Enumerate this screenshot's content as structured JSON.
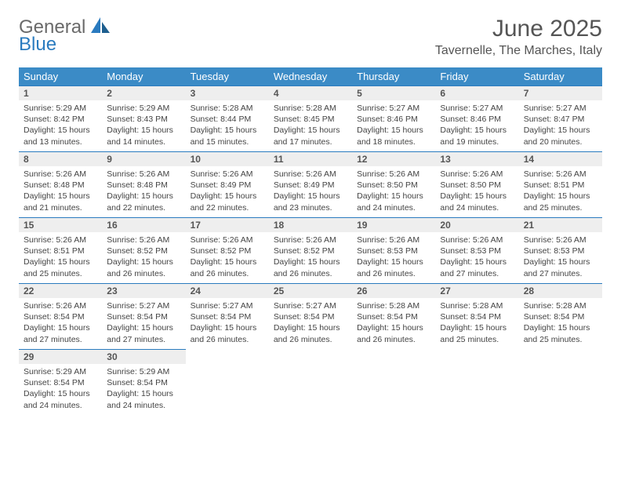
{
  "logo": {
    "general": "General",
    "blue": "Blue"
  },
  "title": "June 2025",
  "location": "Tavernelle, The Marches, Italy",
  "colors": {
    "header_bg": "#3b8bc6",
    "header_text": "#ffffff",
    "daynum_bg": "#eeeeee",
    "daynum_border": "#2a7bbf",
    "text": "#444444",
    "title_text": "#555555"
  },
  "weekdays": [
    "Sunday",
    "Monday",
    "Tuesday",
    "Wednesday",
    "Thursday",
    "Friday",
    "Saturday"
  ],
  "weeks": [
    [
      {
        "n": "1",
        "sr": "5:29 AM",
        "ss": "8:42 PM",
        "dl": "15 hours and 13 minutes."
      },
      {
        "n": "2",
        "sr": "5:29 AM",
        "ss": "8:43 PM",
        "dl": "15 hours and 14 minutes."
      },
      {
        "n": "3",
        "sr": "5:28 AM",
        "ss": "8:44 PM",
        "dl": "15 hours and 15 minutes."
      },
      {
        "n": "4",
        "sr": "5:28 AM",
        "ss": "8:45 PM",
        "dl": "15 hours and 17 minutes."
      },
      {
        "n": "5",
        "sr": "5:27 AM",
        "ss": "8:46 PM",
        "dl": "15 hours and 18 minutes."
      },
      {
        "n": "6",
        "sr": "5:27 AM",
        "ss": "8:46 PM",
        "dl": "15 hours and 19 minutes."
      },
      {
        "n": "7",
        "sr": "5:27 AM",
        "ss": "8:47 PM",
        "dl": "15 hours and 20 minutes."
      }
    ],
    [
      {
        "n": "8",
        "sr": "5:26 AM",
        "ss": "8:48 PM",
        "dl": "15 hours and 21 minutes."
      },
      {
        "n": "9",
        "sr": "5:26 AM",
        "ss": "8:48 PM",
        "dl": "15 hours and 22 minutes."
      },
      {
        "n": "10",
        "sr": "5:26 AM",
        "ss": "8:49 PM",
        "dl": "15 hours and 22 minutes."
      },
      {
        "n": "11",
        "sr": "5:26 AM",
        "ss": "8:49 PM",
        "dl": "15 hours and 23 minutes."
      },
      {
        "n": "12",
        "sr": "5:26 AM",
        "ss": "8:50 PM",
        "dl": "15 hours and 24 minutes."
      },
      {
        "n": "13",
        "sr": "5:26 AM",
        "ss": "8:50 PM",
        "dl": "15 hours and 24 minutes."
      },
      {
        "n": "14",
        "sr": "5:26 AM",
        "ss": "8:51 PM",
        "dl": "15 hours and 25 minutes."
      }
    ],
    [
      {
        "n": "15",
        "sr": "5:26 AM",
        "ss": "8:51 PM",
        "dl": "15 hours and 25 minutes."
      },
      {
        "n": "16",
        "sr": "5:26 AM",
        "ss": "8:52 PM",
        "dl": "15 hours and 26 minutes."
      },
      {
        "n": "17",
        "sr": "5:26 AM",
        "ss": "8:52 PM",
        "dl": "15 hours and 26 minutes."
      },
      {
        "n": "18",
        "sr": "5:26 AM",
        "ss": "8:52 PM",
        "dl": "15 hours and 26 minutes."
      },
      {
        "n": "19",
        "sr": "5:26 AM",
        "ss": "8:53 PM",
        "dl": "15 hours and 26 minutes."
      },
      {
        "n": "20",
        "sr": "5:26 AM",
        "ss": "8:53 PM",
        "dl": "15 hours and 27 minutes."
      },
      {
        "n": "21",
        "sr": "5:26 AM",
        "ss": "8:53 PM",
        "dl": "15 hours and 27 minutes."
      }
    ],
    [
      {
        "n": "22",
        "sr": "5:26 AM",
        "ss": "8:54 PM",
        "dl": "15 hours and 27 minutes."
      },
      {
        "n": "23",
        "sr": "5:27 AM",
        "ss": "8:54 PM",
        "dl": "15 hours and 27 minutes."
      },
      {
        "n": "24",
        "sr": "5:27 AM",
        "ss": "8:54 PM",
        "dl": "15 hours and 26 minutes."
      },
      {
        "n": "25",
        "sr": "5:27 AM",
        "ss": "8:54 PM",
        "dl": "15 hours and 26 minutes."
      },
      {
        "n": "26",
        "sr": "5:28 AM",
        "ss": "8:54 PM",
        "dl": "15 hours and 26 minutes."
      },
      {
        "n": "27",
        "sr": "5:28 AM",
        "ss": "8:54 PM",
        "dl": "15 hours and 25 minutes."
      },
      {
        "n": "28",
        "sr": "5:28 AM",
        "ss": "8:54 PM",
        "dl": "15 hours and 25 minutes."
      }
    ],
    [
      {
        "n": "29",
        "sr": "5:29 AM",
        "ss": "8:54 PM",
        "dl": "15 hours and 24 minutes."
      },
      {
        "n": "30",
        "sr": "5:29 AM",
        "ss": "8:54 PM",
        "dl": "15 hours and 24 minutes."
      },
      null,
      null,
      null,
      null,
      null
    ]
  ],
  "labels": {
    "sunrise": "Sunrise:",
    "sunset": "Sunset:",
    "daylight": "Daylight:"
  }
}
